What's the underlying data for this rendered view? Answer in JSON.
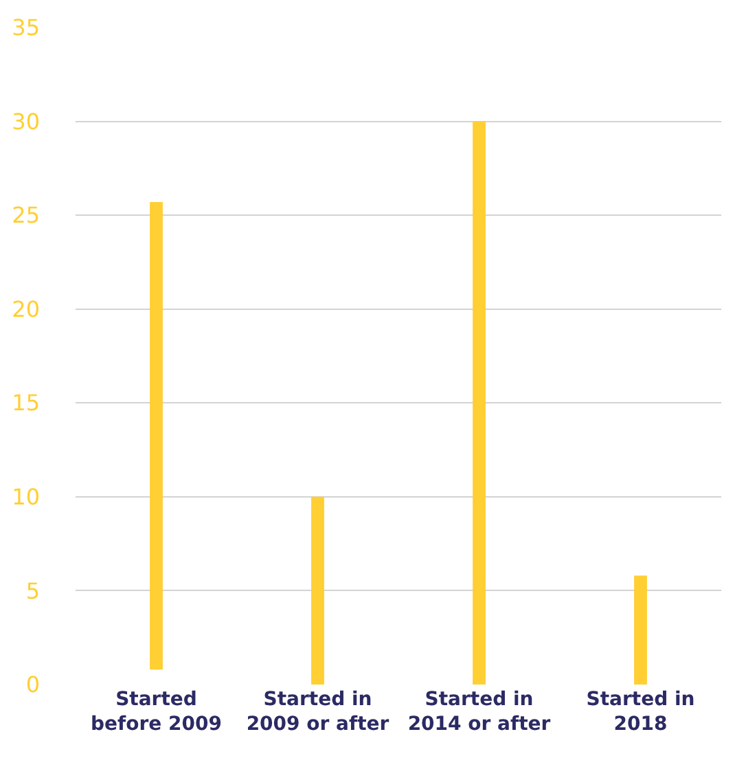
{
  "chart_data": {
    "type": "bar",
    "categories": [
      "Started\nbefore 2009",
      "Started in\n2009 or after",
      "Started in\n2014 or after",
      "Started in\n2018"
    ],
    "values": [
      24.9,
      10,
      30,
      5.8
    ],
    "base": [
      0.8,
      0,
      0,
      0
    ],
    "color": "#ffcf33",
    "ylim": [
      0,
      35
    ],
    "yticks": [
      0,
      5,
      10,
      15,
      20,
      25,
      30,
      35
    ],
    "grid": "y"
  }
}
